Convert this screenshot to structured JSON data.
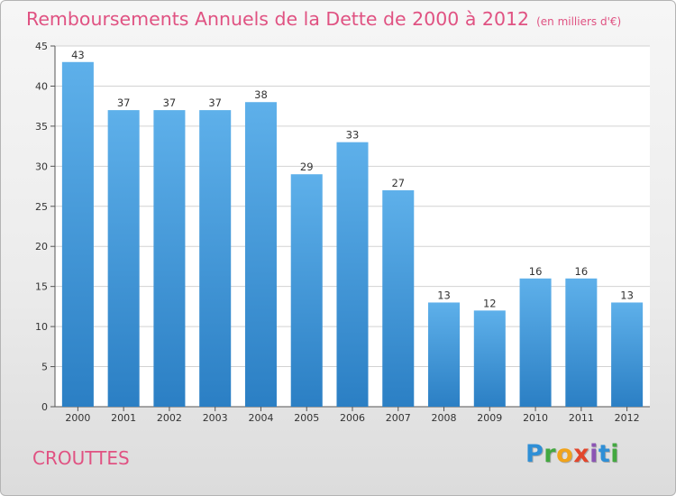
{
  "chart_data": {
    "type": "bar",
    "title": "Remboursements Annuels de la Dette de 2000 à 2012",
    "subtitle": "(en milliers d'€)",
    "categories": [
      "2000",
      "2001",
      "2002",
      "2003",
      "2004",
      "2005",
      "2006",
      "2007",
      "2008",
      "2009",
      "2010",
      "2011",
      "2012"
    ],
    "values": [
      43,
      37,
      37,
      37,
      38,
      29,
      33,
      27,
      13,
      12,
      16,
      16,
      13
    ],
    "ylim": [
      0,
      45
    ],
    "yticks": [
      0,
      5,
      10,
      15,
      20,
      25,
      30,
      35,
      40,
      45
    ],
    "xlabel": "",
    "ylabel": "",
    "grid": true
  },
  "commune": "CROUTTES",
  "logo": "Proxiti",
  "colors": {
    "title": "#e05282",
    "bar_top": "#5eb0ea",
    "bar_bottom": "#2b7fc4",
    "grid": "#d2d2d2"
  }
}
